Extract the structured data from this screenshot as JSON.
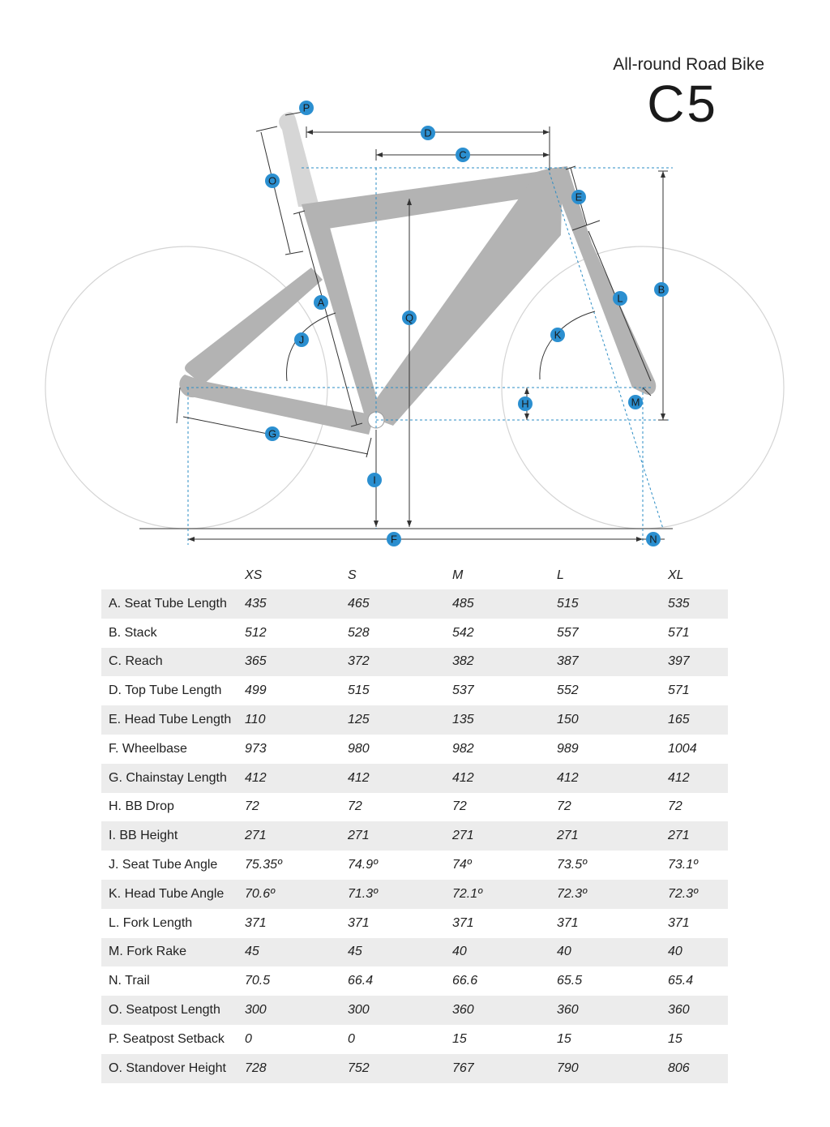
{
  "header": {
    "subtitle": "All-round Road Bike",
    "model": "C5"
  },
  "diagram": {
    "colors": {
      "frame": "#b3b3b3",
      "seatpost": "#d6d6d6",
      "wheel": "#d4d4d4",
      "dim_line": "#333333",
      "guide_line": "#2b8cc4",
      "badge": "#2b8fd0"
    },
    "badges": [
      "P",
      "D",
      "C",
      "O",
      "E",
      "B",
      "A",
      "L",
      "Q",
      "J",
      "K",
      "H",
      "M",
      "G",
      "I",
      "F",
      "N"
    ]
  },
  "table": {
    "columns": [
      "XS",
      "S",
      "M",
      "L",
      "XL"
    ],
    "rows": [
      {
        "label": "A. Seat Tube Length",
        "values": [
          "435",
          "465",
          "485",
          "515",
          "535"
        ]
      },
      {
        "label": "B. Stack",
        "values": [
          "512",
          "528",
          "542",
          "557",
          "571"
        ]
      },
      {
        "label": "C. Reach",
        "values": [
          "365",
          "372",
          "382",
          "387",
          "397"
        ]
      },
      {
        "label": "D. Top Tube Length",
        "values": [
          "499",
          "515",
          "537",
          "552",
          "571"
        ]
      },
      {
        "label": "E. Head Tube Length",
        "values": [
          "110",
          "125",
          "135",
          "150",
          "165"
        ]
      },
      {
        "label": "F. Wheelbase",
        "values": [
          "973",
          "980",
          "982",
          "989",
          "1004"
        ]
      },
      {
        "label": "G. Chainstay Length",
        "values": [
          "412",
          "412",
          "412",
          "412",
          "412"
        ]
      },
      {
        "label": "H. BB Drop",
        "values": [
          "72",
          "72",
          "72",
          "72",
          "72"
        ]
      },
      {
        "label": "I. BB Height",
        "values": [
          "271",
          "271",
          "271",
          "271",
          "271"
        ]
      },
      {
        "label": "J. Seat Tube Angle",
        "values": [
          "75.35º",
          "74.9º",
          "74º",
          "73.5º",
          "73.1º"
        ]
      },
      {
        "label": "K. Head Tube Angle",
        "values": [
          "70.6º",
          "71.3º",
          "72.1º",
          "72.3º",
          "72.3º"
        ]
      },
      {
        "label": "L. Fork Length",
        "values": [
          "371",
          "371",
          "371",
          "371",
          "371"
        ]
      },
      {
        "label": "M. Fork Rake",
        "values": [
          "45",
          "45",
          "40",
          "40",
          "40"
        ]
      },
      {
        "label": "N. Trail",
        "values": [
          "70.5",
          "66.4",
          "66.6",
          "65.5",
          "65.4"
        ]
      },
      {
        "label": "O. Seatpost Length",
        "values": [
          "300",
          "300",
          "360",
          "360",
          "360"
        ]
      },
      {
        "label": "P. Seatpost Setback",
        "values": [
          "0",
          "0",
          "15",
          "15",
          "15"
        ]
      },
      {
        "label": "O. Standover Height",
        "values": [
          "728",
          "752",
          "767",
          "790",
          "806"
        ]
      }
    ]
  }
}
